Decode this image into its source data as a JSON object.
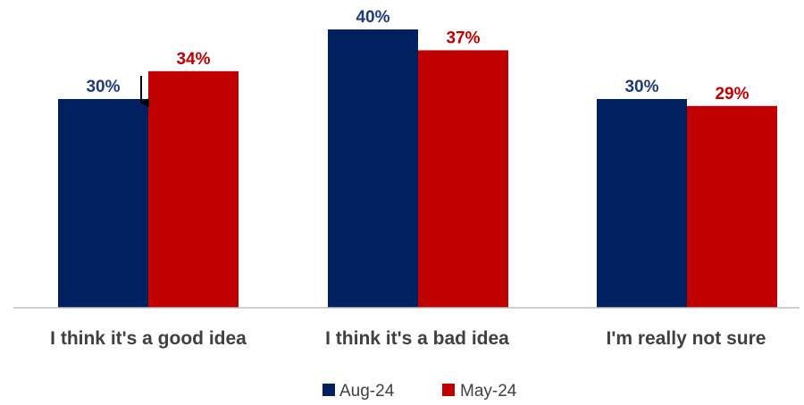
{
  "chart_data": {
    "type": "bar",
    "categories": [
      "I think it's a good idea",
      "I think it's a bad idea",
      "I'm really not sure"
    ],
    "series": [
      {
        "name": "Aug-24",
        "values": [
          30,
          40,
          30
        ],
        "labels": [
          "30%",
          "40%",
          "30%"
        ],
        "color": "#002060",
        "label_color": "#1f3a7a"
      },
      {
        "name": "May-24",
        "values": [
          34,
          37,
          29
        ],
        "labels": [
          "34%",
          "37%",
          "29%"
        ],
        "color": "#c00000",
        "label_color": "#c00000"
      }
    ],
    "ylim": [
      0,
      40
    ],
    "grid": false,
    "legend_position": "bottom-center",
    "annotation": "down-arrow-between-first-pair"
  }
}
